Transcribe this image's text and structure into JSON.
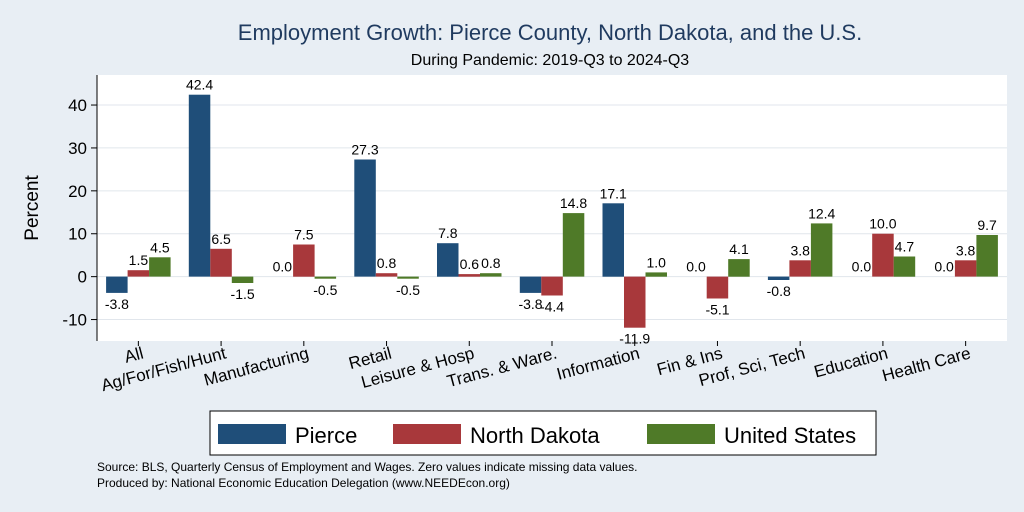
{
  "chart_data": {
    "type": "bar",
    "title": "Employment Growth: Pierce County, North Dakota, and the U.S.",
    "subtitle": "During Pandemic: 2019-Q3 to 2024-Q3",
    "ylabel": "Percent",
    "xlabel": "",
    "ylim": [
      -15,
      47
    ],
    "yticks": [
      -10,
      0,
      10,
      20,
      30,
      40
    ],
    "categories": [
      "All",
      "Ag/For/Fish/Hunt",
      "Manufacturing",
      "Retail",
      "Leisure & Hosp",
      "Trans. & Ware.",
      "Information",
      "Fin & Ins",
      "Prof, Sci, Tech",
      "Education",
      "Health Care"
    ],
    "series": [
      {
        "name": "Pierce",
        "color": "#1f4e79",
        "values": [
          -3.8,
          42.4,
          0.0,
          27.3,
          7.8,
          -3.8,
          17.1,
          0.0,
          -0.8,
          0.0,
          0.0
        ],
        "labels": [
          "-3.8",
          "42.4",
          "0.0",
          "27.3",
          "7.8",
          "-3.8",
          "17.1",
          "0.0",
          "-0.8",
          "0.0",
          "0.0"
        ]
      },
      {
        "name": "North Dakota",
        "color": "#a8383b",
        "values": [
          1.5,
          6.5,
          7.5,
          0.8,
          0.6,
          -4.4,
          -11.9,
          -5.1,
          3.8,
          10.0,
          3.8
        ],
        "labels": [
          "1.5",
          "6.5",
          "7.5",
          "0.8",
          "0.6",
          "-4.4",
          "-11.9",
          "-5.1",
          "3.8",
          "10.0",
          "3.8"
        ]
      },
      {
        "name": "United States",
        "color": "#4f7a28",
        "values": [
          4.5,
          -1.5,
          -0.5,
          -0.5,
          0.8,
          14.8,
          1.0,
          4.1,
          12.4,
          4.7,
          9.7
        ],
        "labels": [
          "4.5",
          "-1.5",
          "-0.5",
          "-0.5",
          "0.8",
          "14.8",
          "1.0",
          "4.1",
          "12.4",
          "4.7",
          "9.7"
        ]
      }
    ],
    "legend": "bottom",
    "grid": true
  },
  "footnotes": {
    "source": "Source: BLS, Quarterly Census of Employment and Wages. Zero values indicate missing data values.",
    "produced": "Produced by: National Economic Education Delegation (www.NEEDEcon.org)"
  }
}
